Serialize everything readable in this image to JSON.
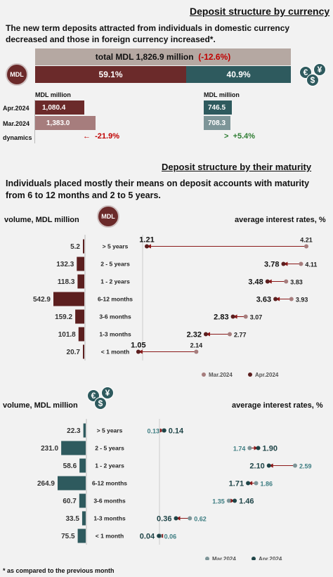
{
  "currency": {
    "title": "Deposit structure  by currency",
    "subtitle": "The new term deposits attracted from individuals in domestic currency decreased and those in foreign currency increased*.",
    "total_label": "total MDL 1,826.9 million",
    "total_change": "(-12.6%)",
    "mdl_share": "59.1%",
    "fx_share": "40.9%",
    "mdl_share_value": 59.1,
    "fx_share_value": 40.9,
    "mdl_badge": "MDL",
    "unit_left": "MDL million",
    "unit_right": "MDL million",
    "row_labels": [
      "Apr.2024",
      "Mar.2024",
      "dynamics"
    ],
    "mdl_values": [
      "1,080.4",
      "1,383.0"
    ],
    "fx_values": [
      "746.5",
      "708.3"
    ],
    "mdl_dynamics": "-21.9%",
    "fx_dynamics": "+5.4%",
    "colors": {
      "mdl_dark": "#6b2a2a",
      "mdl_light": "#a67d7d",
      "fx_dark": "#2e5a5e",
      "fx_light": "#7d9598",
      "negative": "#c00000",
      "positive": "#2e7d32"
    }
  },
  "maturity": {
    "title": "Deposit structure by their maturity",
    "subtitle": "Individuals placed mostly their means on deposit accounts with maturity from 6 to 12 months and 2 to 5 years.",
    "mdl_badge": "MDL",
    "volume_label": "volume, MDL million",
    "rates_label": "average interest rates, %",
    "volume_label_fx": "volume, MDL million",
    "rates_label_fx": "average interest rates, %",
    "footnote": "* as compared to the previous month"
  },
  "chart_data": [
    {
      "type": "bar",
      "title": "volume, MDL million",
      "categories": [
        "> 5 years",
        "2 - 5 years",
        "1 - 2 years",
        "6-12 months",
        "3-6 months",
        "1-3 months",
        "< 1 month"
      ],
      "values": [
        5.2,
        132.3,
        118.3,
        542.9,
        159.2,
        101.8,
        20.7
      ],
      "labels": [
        "5.2",
        "132.3",
        "118.3",
        "542.9",
        "159.2",
        "101.8",
        "20.7"
      ],
      "orientation": "horizontal"
    },
    {
      "type": "scatter",
      "title": "average interest rates, %",
      "categories": [
        "> 5 years",
        "2 - 5 years",
        "1 - 2 years",
        "6-12 months",
        "3-6 months",
        "1-3 months",
        "< 1 month"
      ],
      "series": [
        {
          "name": "Mar.2024",
          "values": [
            4.21,
            4.11,
            3.83,
            3.93,
            3.07,
            2.77,
            2.14
          ],
          "labels": [
            "4.21",
            "4.11",
            "3.83",
            "3.93",
            "3.07",
            "2.77",
            "2.14"
          ]
        },
        {
          "name": "Apr.2024",
          "values": [
            1.21,
            3.78,
            3.48,
            3.63,
            2.83,
            2.32,
            1.05
          ],
          "labels": [
            "1.21",
            "3.78",
            "3.48",
            "3.63",
            "2.83",
            "2.32",
            "1.05"
          ]
        }
      ],
      "legend": "bottom-right"
    },
    {
      "type": "bar",
      "title": "volume, MDL million",
      "categories": [
        "> 5 years",
        "2 - 5 years",
        "1 - 2 years",
        "6-12 months",
        "3-6 months",
        "1-3 months",
        "< 1 month"
      ],
      "values": [
        22.3,
        231.0,
        58.6,
        264.9,
        60.7,
        33.5,
        75.5
      ],
      "labels": [
        "22.3",
        "231.0",
        "58.6",
        "264.9",
        "60.7",
        "33.5",
        "75.5"
      ],
      "orientation": "horizontal"
    },
    {
      "type": "scatter",
      "title": "average interest rates, %",
      "categories": [
        "> 5 years",
        "2 - 5 years",
        "1 - 2 years",
        "6-12 months",
        "3-6 months",
        "1-3 months",
        "< 1 month"
      ],
      "series": [
        {
          "name": "Mar.2024",
          "values": [
            0.13,
            1.74,
            2.59,
            1.86,
            1.35,
            0.62,
            0.06
          ],
          "labels": [
            "0.13",
            "1.74",
            "2.59",
            "1.86",
            "1.35",
            "0.62",
            "0.06"
          ]
        },
        {
          "name": "Apr.2024",
          "values": [
            0.14,
            1.9,
            2.1,
            1.71,
            1.46,
            0.36,
            0.04
          ],
          "labels": [
            "0.14",
            "1.90",
            "2.10",
            "1.71",
            "1.46",
            "0.36",
            "0.04"
          ]
        }
      ],
      "legend": "bottom-right"
    }
  ]
}
